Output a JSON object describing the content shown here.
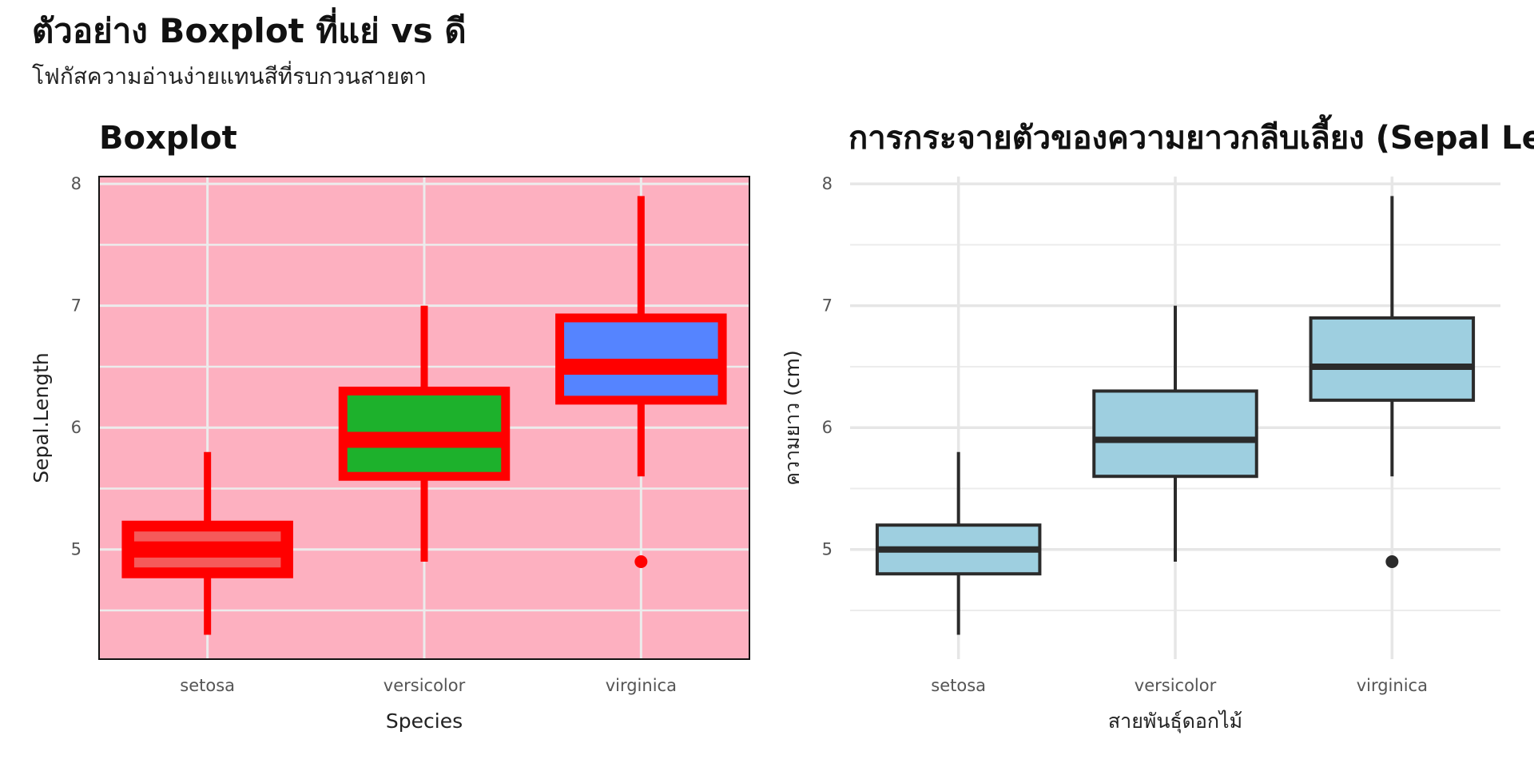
{
  "page": {
    "title": "ตัวอย่าง Boxplot ที่แย่ vs ดี",
    "subtitle": "โฟกัสความอ่านง่ายแทนสีที่รบกวนสายตา"
  },
  "chart_data": [
    {
      "type": "boxplot",
      "title": "Boxplot",
      "xlabel": "Species",
      "ylabel": "Sepal.Length",
      "categories": [
        "setosa",
        "versicolor",
        "virginica"
      ],
      "ylim": [
        4.1,
        8.06
      ],
      "yticks": [
        5,
        6,
        7,
        8
      ],
      "grid": true,
      "background": "#fdb0c0",
      "border": true,
      "box_outline_color": "#ff0000",
      "box_fills": [
        "#ff0000",
        "#1db12c",
        "#5584ff"
      ],
      "whisker_color": "#ff0000",
      "outlier_color": "#ff0000",
      "boxes": [
        {
          "category": "setosa",
          "min": 4.3,
          "q1": 4.8,
          "median": 5.0,
          "q3": 5.2,
          "max": 5.8,
          "outliers": []
        },
        {
          "category": "versicolor",
          "min": 4.9,
          "q1": 5.6,
          "median": 5.9,
          "q3": 6.3,
          "max": 7.0,
          "outliers": []
        },
        {
          "category": "virginica",
          "min": 5.6,
          "q1": 6.225,
          "median": 6.5,
          "q3": 6.9,
          "max": 7.9,
          "outliers": [
            4.9
          ]
        }
      ]
    },
    {
      "type": "boxplot",
      "title": "การกระจายตัวของความยาวกลีบเลี้ยง (Sepal Length)",
      "xlabel": "สายพันธุ์ดอกไม้",
      "ylabel": "ความยาว (cm)",
      "categories": [
        "setosa",
        "versicolor",
        "virginica"
      ],
      "ylim": [
        4.1,
        8.06
      ],
      "yticks": [
        5,
        6,
        7,
        8
      ],
      "grid": true,
      "background": "#ffffff",
      "border": false,
      "box_outline_color": "#2b2b2b",
      "box_fills": [
        "#9ecfe0",
        "#9ecfe0",
        "#9ecfe0"
      ],
      "whisker_color": "#2b2b2b",
      "outlier_color": "#2b2b2b",
      "boxes": [
        {
          "category": "setosa",
          "min": 4.3,
          "q1": 4.8,
          "median": 5.0,
          "q3": 5.2,
          "max": 5.8,
          "outliers": []
        },
        {
          "category": "versicolor",
          "min": 4.9,
          "q1": 5.6,
          "median": 5.9,
          "q3": 6.3,
          "max": 7.0,
          "outliers": []
        },
        {
          "category": "virginica",
          "min": 5.6,
          "q1": 6.225,
          "median": 6.5,
          "q3": 6.9,
          "max": 7.9,
          "outliers": [
            4.9
          ]
        }
      ]
    }
  ]
}
